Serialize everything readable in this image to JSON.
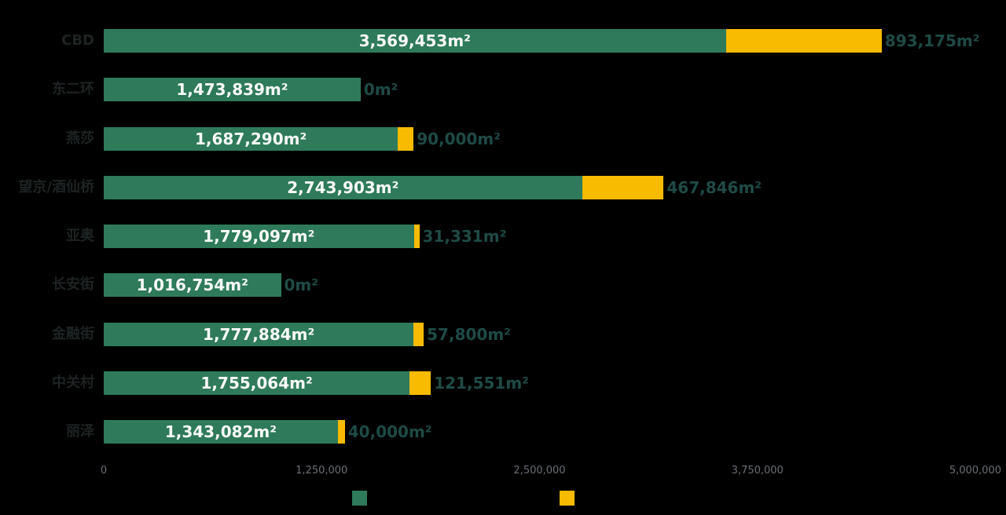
{
  "colors": {
    "background": "#000000",
    "series_green": "#2E7A5A",
    "series_yellow": "#F8BB00",
    "inside_label": "#FAFAFA",
    "outside_label": "#1E4B46",
    "category_label": "#1E2323",
    "tick_label": "#6B6F77"
  },
  "chart_data": {
    "type": "bar",
    "orientation": "horizontal",
    "stacked": true,
    "grid": false,
    "categories": [
      "CBD",
      "东二环",
      "燕莎",
      "望京/酒仙桥",
      "亚奥",
      "长安街",
      "金融街",
      "中关村",
      "丽泽"
    ],
    "series": [
      {
        "name": "green-series",
        "color": "#2E7A5A",
        "values": [
          3569453,
          1473839,
          1687290,
          2743903,
          1779097,
          1016754,
          1777884,
          1755064,
          1343082
        ],
        "labels": [
          "3,569,453m²",
          "1,473,839m²",
          "1,687,290m²",
          "2,743,903m²",
          "1,779,097m²",
          "1,016,754m²",
          "1,777,884m²",
          "1,755,064m²",
          "1,343,082m²"
        ]
      },
      {
        "name": "yellow-series",
        "color": "#F8BB00",
        "values": [
          893175,
          0,
          90000,
          467846,
          31331,
          0,
          57800,
          121551,
          40000
        ],
        "labels": [
          "893,175m²",
          "0m²",
          "90,000m²",
          "467,846m²",
          "31,331m²",
          "0m²",
          "57,800m²",
          "121,551m²",
          "40,000m²"
        ]
      }
    ],
    "xlim": [
      0,
      5000000
    ],
    "x_tick_values": [
      0,
      1250000,
      2500000,
      3750000,
      5000000
    ],
    "x_tick_labels": [
      "0",
      "1,250,000",
      "2,500,000",
      "3,750,000",
      "5,000,000"
    ],
    "legend": {
      "position": "bottom",
      "entries": [
        {
          "marker": "green-square",
          "color": "#2E7A5A"
        },
        {
          "marker": "yellow-square",
          "color": "#F8BB00"
        }
      ]
    }
  }
}
